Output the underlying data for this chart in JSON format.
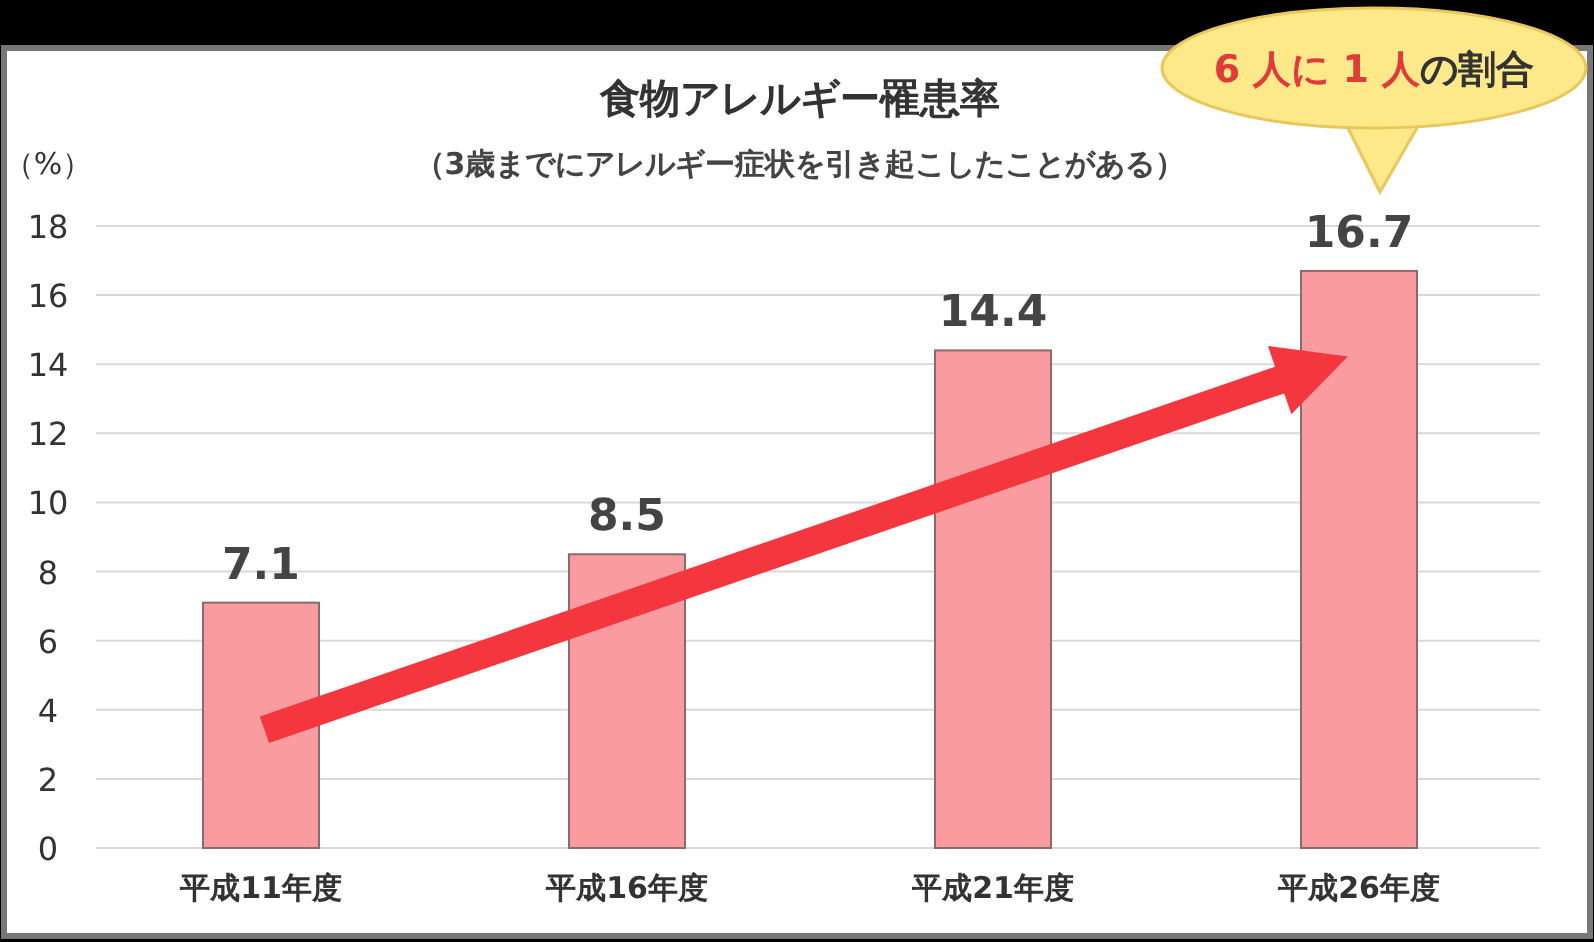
{
  "chart_data": {
    "type": "bar",
    "title": "食物アレルギー罹患率",
    "subtitle": "（3歳までにアレルギー症状を引き起こしたことがある）",
    "ylabel": "（%）",
    "categories": [
      "平成11年度",
      "平成16年度",
      "平成21年度",
      "平成26年度"
    ],
    "values": [
      7.1,
      8.5,
      14.4,
      16.7
    ],
    "color": "#f99b9f",
    "ylim": [
      0,
      18
    ],
    "yticks": [
      0,
      2,
      4,
      6,
      8,
      10,
      12,
      14,
      16,
      18
    ],
    "grid": "y",
    "data_labels": true,
    "annotations": [
      "6 人に 1 人",
      "の割合"
    ]
  }
}
